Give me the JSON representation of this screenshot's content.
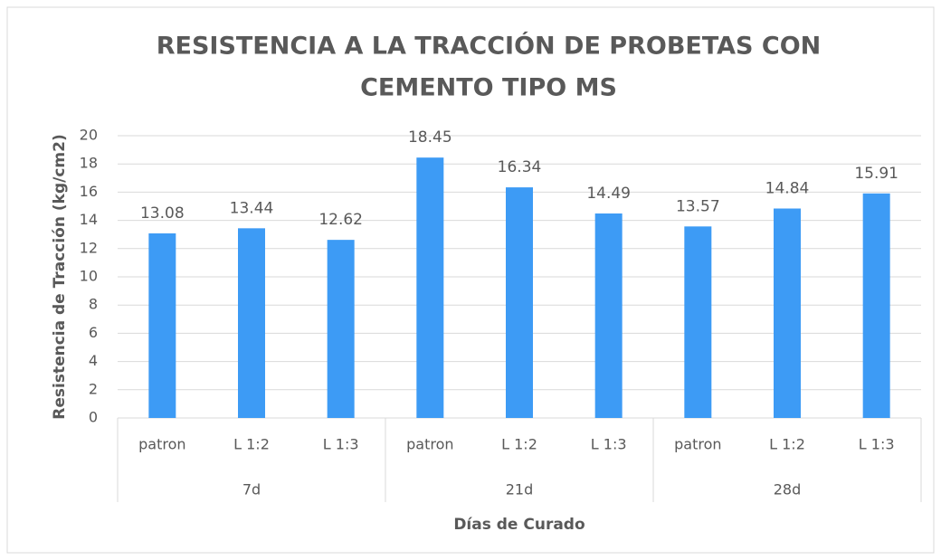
{
  "chart_data": {
    "type": "bar",
    "title": [
      "RESISTENCIA A LA TRACCIÓN DE PROBETAS CON",
      "CEMENTO TIPO MS"
    ],
    "y_label": "Resistencia de Tracción (kg/cm2)",
    "x_label": "Días de Curado",
    "categories": [
      "patron",
      "L 1:2",
      "L 1:3",
      "patron",
      "L 1:2",
      "L 1:3",
      "patron",
      "L 1:2",
      "L 1:3"
    ],
    "groups": [
      "7d",
      "21d",
      "28d"
    ],
    "values": [
      13.08,
      13.44,
      12.62,
      18.45,
      16.34,
      14.49,
      13.57,
      14.84,
      15.91
    ],
    "color": "#3d9bf5",
    "ylim": [
      0,
      20
    ],
    "yticks": [
      0,
      2,
      4,
      6,
      8,
      10,
      12,
      14,
      16,
      18,
      20
    ],
    "grid": true
  }
}
